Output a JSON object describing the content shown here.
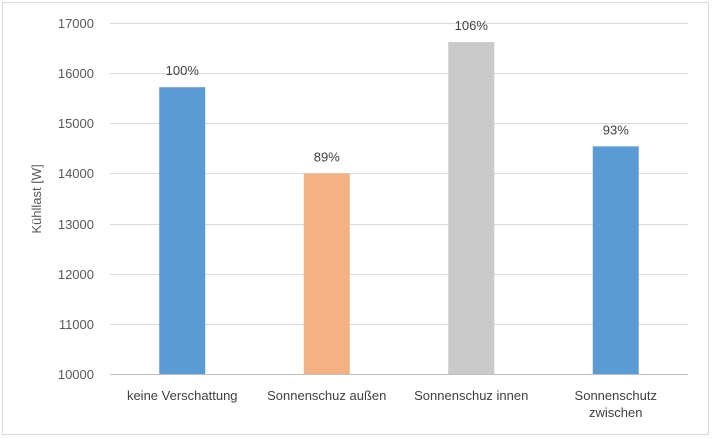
{
  "chart_data": {
    "type": "bar",
    "title": "",
    "xlabel": "",
    "ylabel": "Kühllast [W]",
    "ylim": [
      10000,
      17000
    ],
    "ytick_step": 1000,
    "grid": true,
    "legend": "none",
    "categories": [
      [
        "keine Verschattung"
      ],
      [
        "Sonnenschuz außen"
      ],
      [
        "Sonnenschuz innen"
      ],
      [
        "Sonnenschutz",
        "zwischen"
      ]
    ],
    "values": [
      15720,
      14000,
      16620,
      14540
    ],
    "data_labels": [
      "100%",
      "89%",
      "106%",
      "93%"
    ],
    "colors": [
      "#5b9bd5",
      "#f4b183",
      "#c9c9c9",
      "#5b9bd5"
    ]
  }
}
